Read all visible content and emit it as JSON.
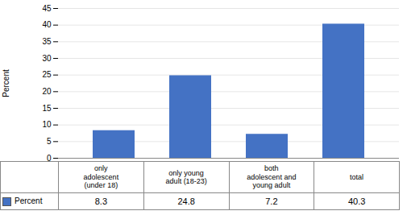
{
  "chart_data": {
    "type": "bar",
    "categories": [
      "only\nadolescent\n(under 18)",
      "only young\nadult (18-23)",
      "both\nadolescent and\nyoung adult",
      "total"
    ],
    "series": [
      {
        "name": "Percent",
        "color": "#4472C4",
        "values": [
          8.3,
          24.8,
          7.2,
          40.3
        ]
      }
    ],
    "ylabel": "Percent",
    "ylim": [
      0,
      45
    ],
    "yticks": [
      0,
      5,
      10,
      15,
      20,
      25,
      30,
      35,
      40,
      45
    ],
    "grid": true,
    "legend": "bottom",
    "data_labels": true
  }
}
